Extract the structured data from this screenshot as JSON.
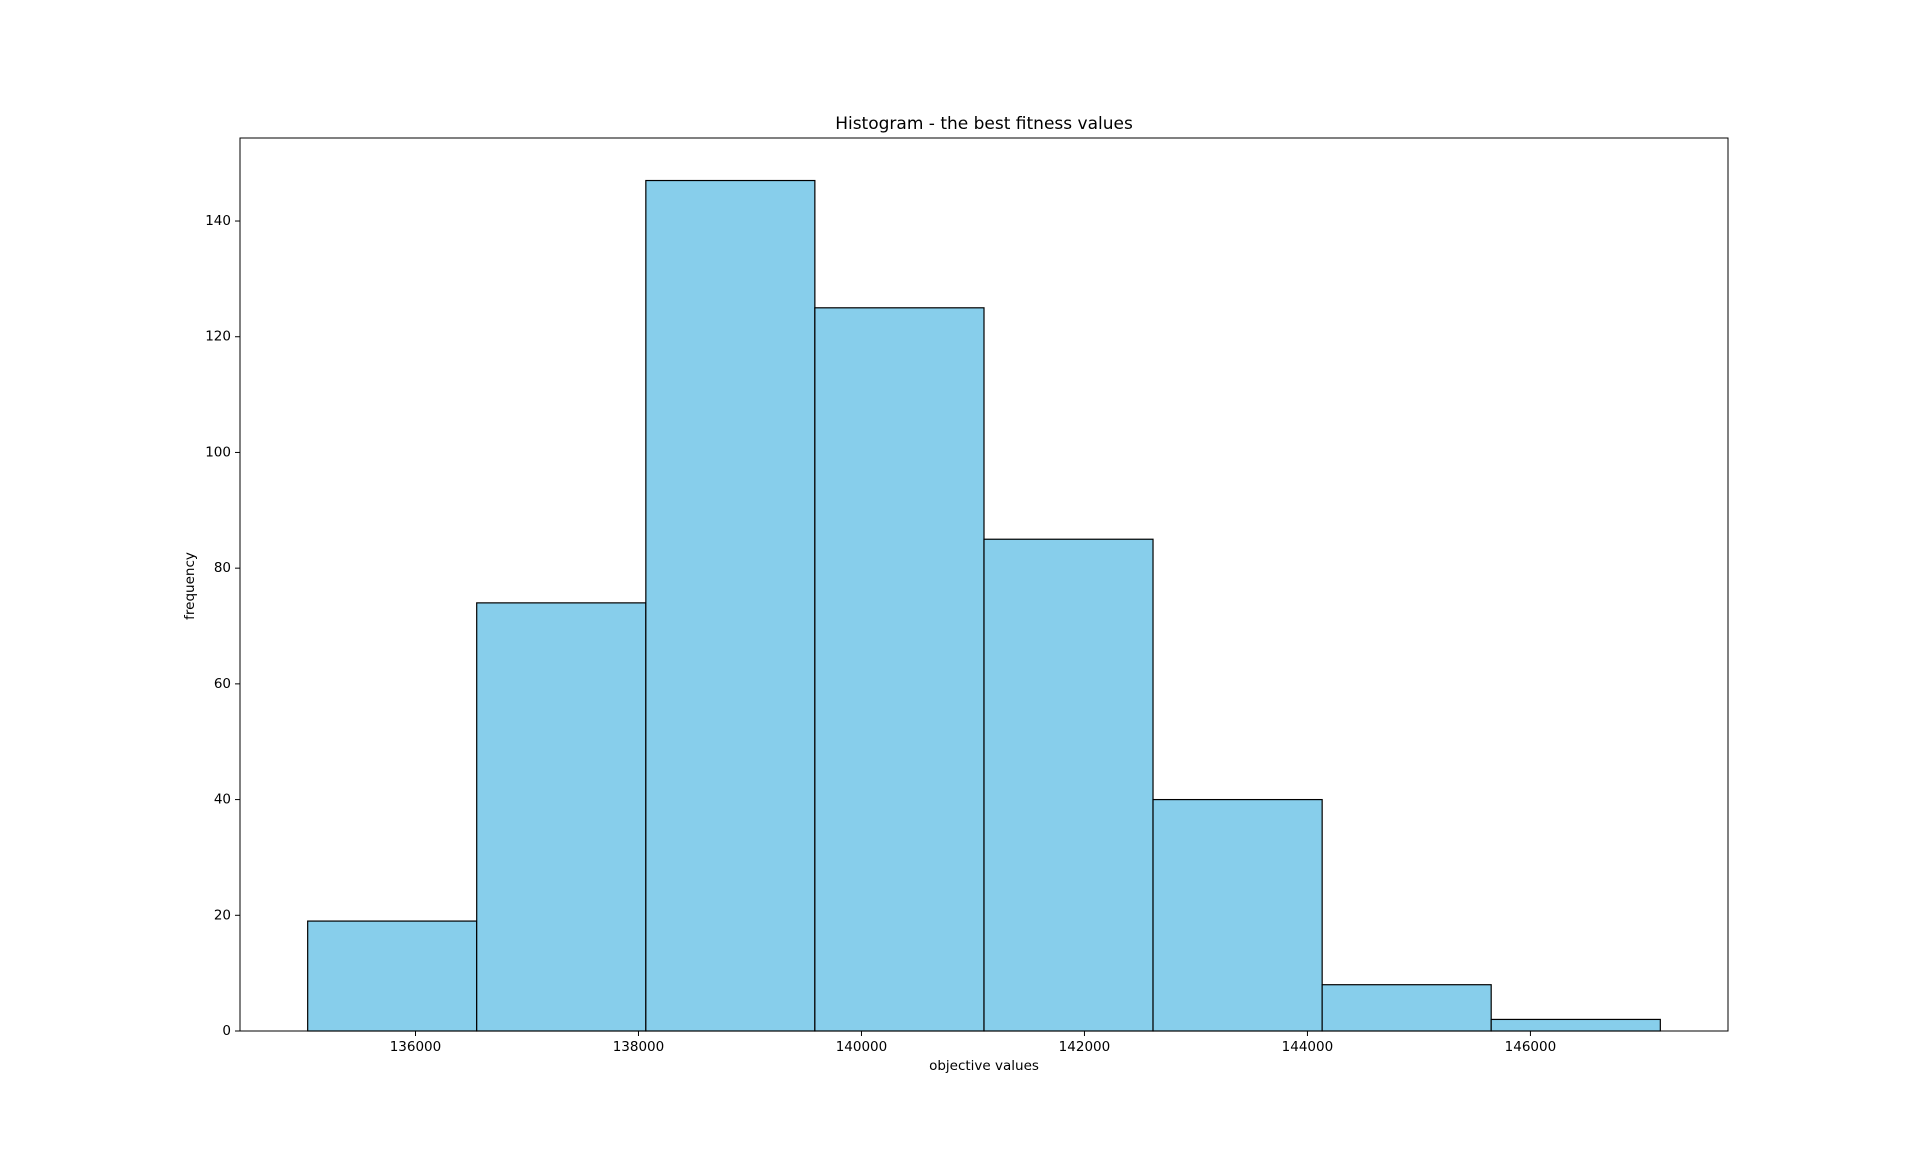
{
  "chart_data": {
    "type": "histogram",
    "title": "Histogram - the best fitness values",
    "xlabel": "objective values",
    "ylabel": "frequency",
    "bins": [
      135033,
      136549,
      138066,
      139582,
      141099,
      142615,
      144132,
      145648,
      147165
    ],
    "counts": [
      19,
      74,
      147,
      125,
      85,
      40,
      8,
      2
    ],
    "color": "#87ceeb",
    "edgecolor": "#000000",
    "xlim": [
      134426,
      147772
    ],
    "xticks": [
      136000,
      138000,
      140000,
      142000,
      144000,
      146000
    ],
    "ylim": [
      0,
      154.35
    ],
    "yticks": [
      0,
      20,
      40,
      60,
      80,
      100,
      120,
      140
    ]
  }
}
